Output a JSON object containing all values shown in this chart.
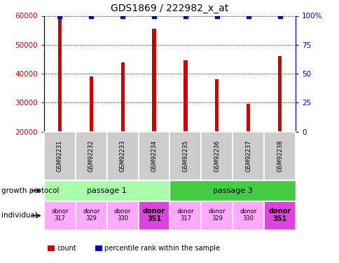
{
  "title": "GDS1869 / 222982_x_at",
  "samples": [
    "GSM92231",
    "GSM92232",
    "GSM92233",
    "GSM92234",
    "GSM92235",
    "GSM92236",
    "GSM92237",
    "GSM92238"
  ],
  "counts": [
    59500,
    39000,
    44000,
    55500,
    44500,
    38000,
    29500,
    46000
  ],
  "percentiles": [
    100,
    100,
    100,
    100,
    100,
    100,
    100,
    100
  ],
  "ylim_left": [
    20000,
    60000
  ],
  "ylim_right": [
    0,
    100
  ],
  "yticks_left": [
    20000,
    30000,
    40000,
    50000,
    60000
  ],
  "yticks_right": [
    0,
    25,
    50,
    75,
    100
  ],
  "bar_color": "#cc0000",
  "dot_color": "#0000cc",
  "bar_width": 0.12,
  "growth_protocol_groups": [
    {
      "label": "passage 1",
      "start": 0,
      "end": 4,
      "color": "#aaffaa"
    },
    {
      "label": "passage 3",
      "start": 4,
      "end": 8,
      "color": "#44cc44"
    }
  ],
  "individuals": [
    {
      "label": "donor\n317",
      "bold": false
    },
    {
      "label": "donor\n329",
      "bold": false
    },
    {
      "label": "donor\n330",
      "bold": false
    },
    {
      "label": "donor\n351",
      "bold": true
    },
    {
      "label": "donor\n317",
      "bold": false
    },
    {
      "label": "donor\n329",
      "bold": false
    },
    {
      "label": "donor\n330",
      "bold": false
    },
    {
      "label": "donor\n351",
      "bold": true
    }
  ],
  "individual_color_normal": "#ffaaff",
  "individual_color_bold": "#dd44dd",
  "sample_label_bg": "#cccccc",
  "legend_count_color": "#cc0000",
  "legend_percentile_color": "#0000cc",
  "xlabel_growth": "growth protocol",
  "xlabel_individual": "individual"
}
